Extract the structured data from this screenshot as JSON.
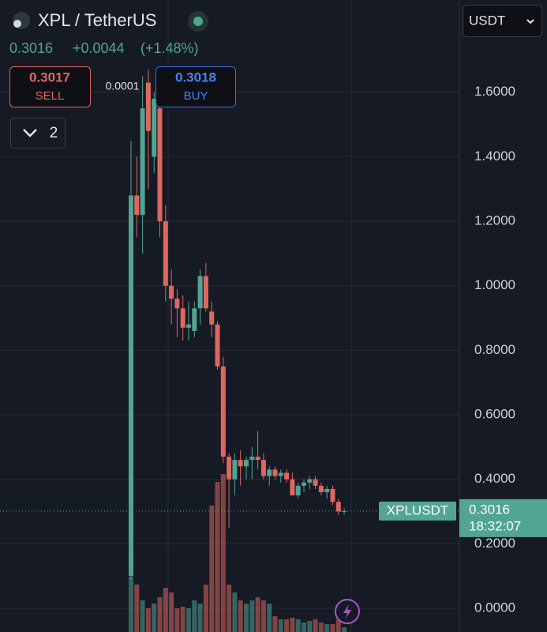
{
  "header": {
    "title": "XPL / TetherUS",
    "change": "+0.0044",
    "change_pct": "(+1.48%)",
    "sell": {
      "price": "0.3017",
      "label": "SELL"
    },
    "spread": "0.0001",
    "buy": {
      "price": "0.3018",
      "label": "BUY"
    },
    "layout_count": "2",
    "currency": "USDT"
  },
  "chart_data": {
    "type": "candlestick",
    "symbol": "XPLUSDT",
    "last_price": {
      "value": 0.3016,
      "label": "0.3016"
    },
    "countdown": "18:32:07",
    "up_color": "#52a493",
    "down_color": "#e0675f",
    "ylim": [
      -0.0735,
      1.886
    ],
    "yticks": [
      {
        "value": 0,
        "label": "0.0000"
      },
      {
        "value": 0.2,
        "label": "0.2000"
      },
      {
        "value": 0.4,
        "label": "0.4000"
      },
      {
        "value": 0.6,
        "label": "0.6000"
      },
      {
        "value": 0.8,
        "label": "0.8000"
      },
      {
        "value": 1,
        "label": "1.0000"
      },
      {
        "value": 1.2,
        "label": "1.2000"
      },
      {
        "value": 1.4,
        "label": "1.4000"
      },
      {
        "value": 1.6,
        "label": "1.6000"
      }
    ],
    "grid": true,
    "open": [
      0.1,
      1.28,
      1.22,
      1.63,
      1.4,
      1.55,
      1.2,
      1.0,
      0.96,
      0.93,
      0.87,
      0.86,
      0.93,
      1.03,
      0.92,
      0.88,
      0.75,
      0.47,
      0.4,
      0.46,
      0.44,
      0.46,
      0.47,
      0.46,
      0.41,
      0.43,
      0.41,
      0.42,
      0.4,
      0.35,
      0.38,
      0.39,
      0.4,
      0.38,
      0.36,
      0.37,
      0.33,
      0.3
    ],
    "high": [
      1.45,
      1.4,
      1.65,
      1.67,
      1.6,
      1.57,
      1.25,
      1.05,
      0.99,
      0.97,
      0.95,
      0.95,
      1.05,
      1.07,
      0.95,
      0.89,
      0.78,
      0.48,
      0.48,
      0.49,
      0.47,
      0.5,
      0.55,
      0.48,
      0.44,
      0.44,
      0.43,
      0.43,
      0.42,
      0.39,
      0.4,
      0.41,
      0.41,
      0.39,
      0.38,
      0.38,
      0.34,
      0.31
    ],
    "low": [
      0.09,
      1.15,
      1.1,
      1.3,
      1.35,
      1.15,
      0.95,
      0.88,
      0.84,
      0.83,
      0.83,
      0.84,
      0.88,
      0.92,
      0.84,
      0.74,
      0.45,
      0.25,
      0.35,
      0.38,
      0.4,
      0.4,
      0.43,
      0.4,
      0.38,
      0.4,
      0.39,
      0.39,
      0.35,
      0.34,
      0.36,
      0.37,
      0.37,
      0.35,
      0.34,
      0.32,
      0.29,
      0.29
    ],
    "close": [
      1.28,
      1.22,
      1.55,
      1.48,
      1.58,
      1.2,
      1.0,
      0.96,
      0.93,
      0.87,
      0.88,
      0.93,
      1.03,
      0.93,
      0.88,
      0.75,
      0.47,
      0.4,
      0.46,
      0.44,
      0.46,
      0.47,
      0.46,
      0.41,
      0.43,
      0.41,
      0.42,
      0.4,
      0.35,
      0.38,
      0.39,
      0.4,
      0.38,
      0.36,
      0.37,
      0.33,
      0.3,
      0.3016
    ],
    "volume": [
      35,
      30,
      20,
      15,
      18,
      22,
      28,
      25,
      15,
      16,
      15,
      20,
      18,
      30,
      80,
      95,
      100,
      30,
      25,
      20,
      18,
      20,
      22,
      20,
      18,
      10,
      8,
      8,
      9,
      8,
      6,
      7,
      8,
      6,
      5,
      5,
      8,
      3
    ]
  }
}
